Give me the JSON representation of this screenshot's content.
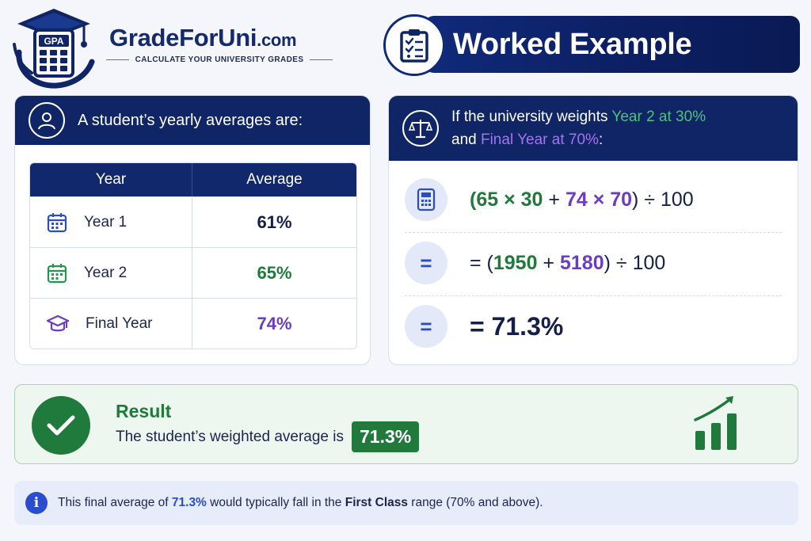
{
  "brand": {
    "name": "GradeForUni",
    "domain": ".com",
    "tagline": "CALCULATE YOUR UNIVERSITY GRADES",
    "logo_text": "GPA",
    "logo_icon": "graduation-cap-calculator-icon"
  },
  "banner": {
    "title": "Worked Example",
    "icon": "clipboard-checklist-icon"
  },
  "left_card": {
    "heading": "A student’s yearly averages are:",
    "icon": "user-icon",
    "table": {
      "headers": [
        "Year",
        "Average"
      ],
      "rows": [
        {
          "label": "Year 1",
          "value": "61%",
          "icon": "calendar-icon",
          "color": "#14204a",
          "icon_color": "#2a4dd0"
        },
        {
          "label": "Year 2",
          "value": "65%",
          "icon": "calendar-icon",
          "color": "#1f7a3c",
          "icon_color": "#1f9a4a"
        },
        {
          "label": "Final Year",
          "value": "74%",
          "icon": "graduation-cap-icon",
          "color": "#6b3cc6",
          "icon_color": "#6b3cc6"
        }
      ]
    }
  },
  "right_card": {
    "icon": "balance-scale-icon",
    "line1_prefix": "If the university weights ",
    "line1_highlight": "Year 2 at 30%",
    "line2_prefix": "and ",
    "line2_highlight": "Final Year at 70%",
    "line2_suffix": ":",
    "steps": [
      {
        "icon": "calculator-icon",
        "parts": [
          "(",
          "65 × 30",
          " + ",
          "74 × 70",
          ") ÷ 100"
        ]
      },
      {
        "icon": "equals-icon",
        "parts": [
          "= (",
          "1950",
          " + ",
          "5180",
          ") ÷ 100"
        ]
      },
      {
        "icon": "equals-icon",
        "text": "= 71.3%"
      }
    ],
    "equals_symbol": "="
  },
  "result": {
    "title": "Result",
    "text": "The student’s weighted average is",
    "value": "71.3%",
    "icon": "check-icon",
    "trend_icon": "growth-chart-icon"
  },
  "info": {
    "icon": "info-icon",
    "icon_glyph": "i",
    "part1": "This final average of ",
    "highlight": "71.3%",
    "part2": " would typically fall in the ",
    "bold": "First Class",
    "part3": " range (70% and above)."
  },
  "colors": {
    "navy": "#0f2566",
    "green": "#1f7a3c",
    "purple": "#6b3cc6",
    "blue": "#2a4dd0"
  }
}
